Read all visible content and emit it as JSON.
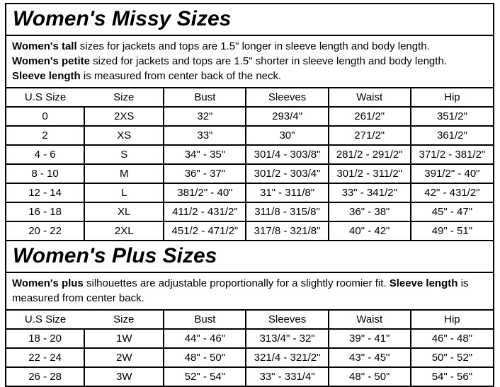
{
  "missy": {
    "title": "Women's Missy Sizes",
    "description": [
      {
        "bold": "Women's tall",
        "text": " sizes for jackets and tops are 1.5\" longer in sleeve length and body length."
      },
      {
        "bold": "Women's petite",
        "text": " sized for jackets and tops are 1.5\" shorter in sleeve length and body length."
      },
      {
        "bold": "Sleeve length",
        "text": " is measured from center back of the neck."
      }
    ],
    "table": {
      "headers": [
        "U.S Size",
        "Size",
        "Bust",
        "Sleeves",
        "Waist",
        "Hip"
      ],
      "rows": [
        [
          "0",
          "2XS",
          "32\"",
          "293/4\"",
          "261/2\"",
          "351/2\""
        ],
        [
          "2",
          "XS",
          "33\"",
          "30\"",
          "271/2\"",
          "361/2\""
        ],
        [
          "4 - 6",
          "S",
          "34\" - 35\"",
          "301/4 - 303/8\"",
          "281/2 - 291/2\"",
          "371/2 - 381/2\""
        ],
        [
          "8 - 10",
          "M",
          "36\" - 37\"",
          "301/2 - 303/4\"",
          "301/2 - 311/2\"",
          "391/2\" - 40\""
        ],
        [
          "12 - 14",
          "L",
          "381/2\" - 40\"",
          "31\" - 311/8\"",
          "33\" - 341/2\"",
          "42\" - 431/2\""
        ],
        [
          "16 - 18",
          "XL",
          "411/2 - 431/2\"",
          "311/8 - 315/8\"",
          "36\" - 38\"",
          "45\" - 47\""
        ],
        [
          "20 - 22",
          "2XL",
          "451/2 - 471/2\"",
          "317/8 - 321/8\"",
          "40\" - 42\"",
          "49\" - 51\""
        ]
      ]
    }
  },
  "plus": {
    "title": "Women's Plus Sizes",
    "description": [
      {
        "bold": "Women's plus",
        "text": " silhouettes are adjustable proportionally for a slightly roomier fit. "
      },
      {
        "bold": "Sleeve length",
        "text": " is measured from center back."
      }
    ],
    "table": {
      "headers": [
        "U.S Size",
        "Size",
        "Bust",
        "Sleeves",
        "Waist",
        "Hip"
      ],
      "rows": [
        [
          "18 - 20",
          "1W",
          "44\" - 46\"",
          "313/4\" - 32\"",
          "39\" - 41\"",
          "46\" - 48\""
        ],
        [
          "22 - 24",
          "2W",
          "48\" - 50\"",
          "321/4 - 321/2\"",
          "43\" - 45\"",
          "50\" - 52\""
        ],
        [
          "26 - 28",
          "3W",
          "52\" - 54\"",
          "33\" - 331/4\"",
          "48\" - 50\"",
          "54\" - 56\""
        ]
      ]
    }
  },
  "colors": {
    "border": "#000000",
    "text": "#000000",
    "background": "#ffffff"
  }
}
